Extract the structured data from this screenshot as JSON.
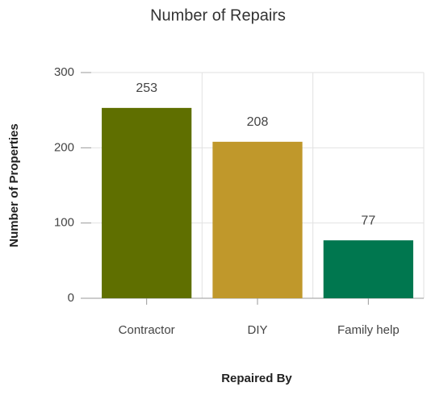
{
  "chart_data": {
    "type": "bar",
    "title": "Number of Repairs",
    "x_label": "Repaired By",
    "y_label": "Number of Properties",
    "categories": [
      "Contractor",
      "DIY",
      "Family help"
    ],
    "values": [
      253,
      208,
      77
    ],
    "colors": [
      "#5f6f00",
      "#c0982b",
      "#00774f"
    ],
    "ylim": [
      0,
      300
    ],
    "yticks": [
      0,
      100,
      200,
      300
    ],
    "grid": true
  }
}
